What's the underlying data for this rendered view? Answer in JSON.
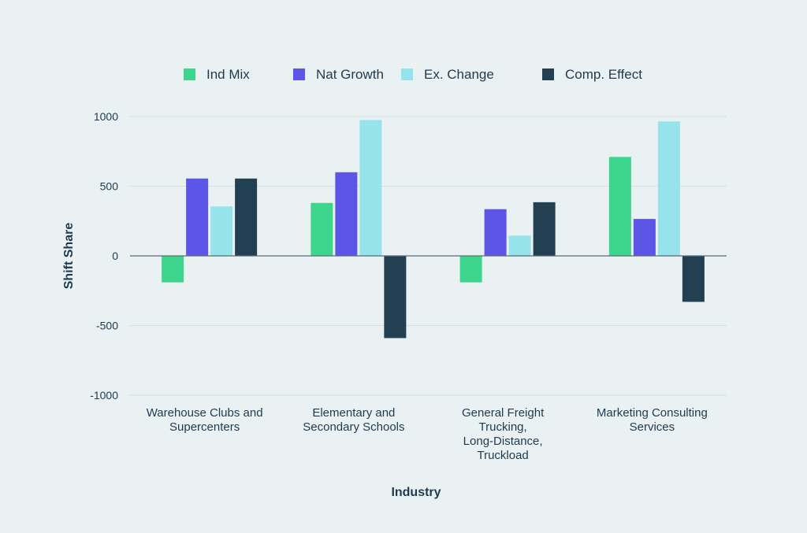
{
  "chart_data": {
    "type": "bar",
    "xlabel": "Industry",
    "ylabel": "Shift Share",
    "ylim": [
      -1000,
      1000
    ],
    "yticks": [
      1000,
      500,
      0,
      -500,
      -1000
    ],
    "yticklabels": [
      "1000",
      "500",
      "0",
      "-500",
      "-1000"
    ],
    "grid": true,
    "legend_position": "top",
    "categories": [
      [
        "Warehouse Clubs and",
        "Supercenters"
      ],
      [
        "Elementary and",
        "Secondary Schools"
      ],
      [
        "General Freight",
        "Trucking,",
        "Long-Distance,",
        "Truckload"
      ],
      [
        "Marketing Consulting",
        "Services"
      ]
    ],
    "series": [
      {
        "name": "Ind Mix",
        "color": "#3dd68c",
        "values": [
          -190,
          380,
          -190,
          710
        ]
      },
      {
        "name": "Nat Growth",
        "color": "#5d55e8",
        "values": [
          555,
          600,
          335,
          265
        ]
      },
      {
        "name": "Ex. Change",
        "color": "#97e3ec",
        "values": [
          355,
          975,
          145,
          965
        ]
      },
      {
        "name": "Comp. Effect",
        "color": "#233f52",
        "values": [
          555,
          -590,
          385,
          -330
        ]
      }
    ]
  }
}
